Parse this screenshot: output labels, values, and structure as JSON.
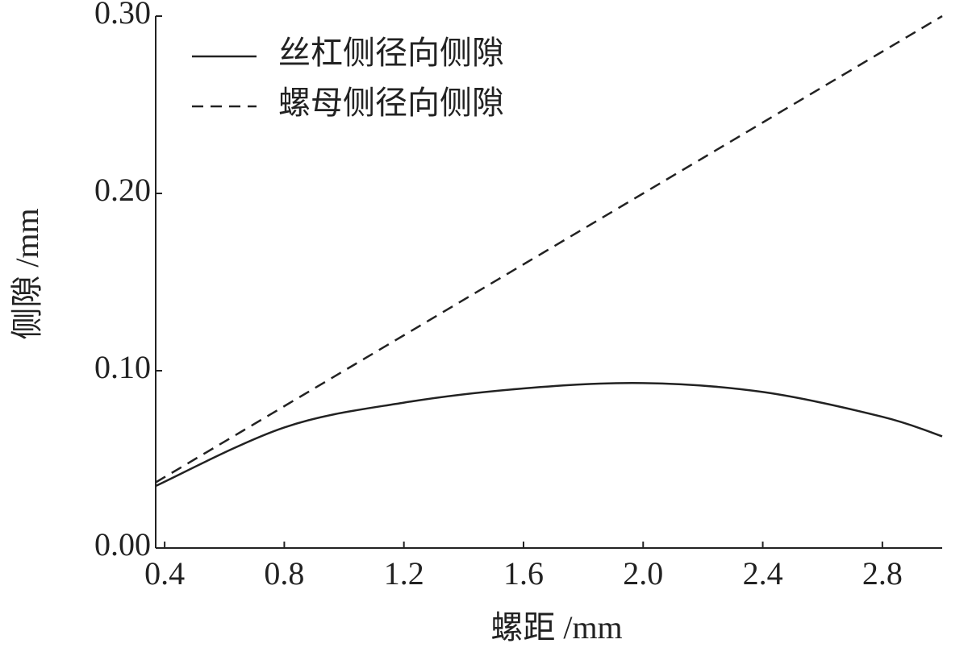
{
  "chart_data": {
    "type": "line",
    "x_label": "螺距 /mm",
    "y_label": "侧隙 /mm",
    "x": [
      0.37,
      0.8,
      1.2,
      1.6,
      2.0,
      2.4,
      2.8,
      3.0
    ],
    "series": [
      {
        "name": "丝杠侧径向侧隙",
        "color": "#222222",
        "dash": "solid",
        "values": [
          0.035,
          0.068,
          0.082,
          0.09,
          0.093,
          0.088,
          0.074,
          0.063
        ]
      },
      {
        "name": "螺母侧径向侧隙",
        "color": "#222222",
        "dash": "dashed",
        "values": [
          0.037,
          0.08,
          0.12,
          0.16,
          0.2,
          0.24,
          0.28,
          0.3
        ]
      }
    ],
    "xlim": [
      0.37,
      3.0
    ],
    "ylim": [
      0,
      0.3
    ],
    "xticks": [
      0.4,
      0.8,
      1.2,
      1.6,
      {
        "value": 2,
        "label": "2.0"
      },
      2.4,
      2.8
    ],
    "yticks": [
      {
        "value": 0,
        "label": "0.00"
      },
      {
        "value": 0.1,
        "label": "0.10"
      },
      {
        "value": 0.2,
        "label": "0.20"
      },
      {
        "value": 0.3,
        "label": "0.30"
      }
    ],
    "legend": "upper-left"
  }
}
